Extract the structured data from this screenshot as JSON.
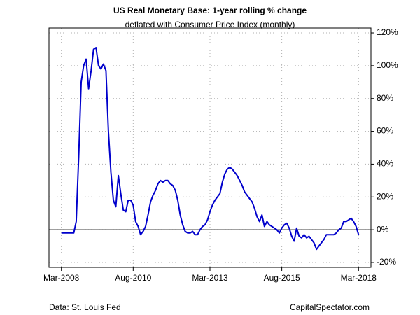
{
  "chart_data": {
    "type": "line",
    "title": "US Real Monetary Base: 1-year rolling % change",
    "subtitle": "deflated with Consumer Price Index (monthly)",
    "source": "Data: St. Louis Fed",
    "credit": "CapitalSpectator.com",
    "x": [
      "2008-03",
      "2008-04",
      "2008-05",
      "2008-06",
      "2008-07",
      "2008-08",
      "2008-09",
      "2008-10",
      "2008-11",
      "2008-12",
      "2009-01",
      "2009-02",
      "2009-03",
      "2009-04",
      "2009-05",
      "2009-06",
      "2009-07",
      "2009-08",
      "2009-09",
      "2009-10",
      "2009-11",
      "2009-12",
      "2010-01",
      "2010-02",
      "2010-03",
      "2010-04",
      "2010-05",
      "2010-06",
      "2010-07",
      "2010-08",
      "2010-09",
      "2010-10",
      "2010-11",
      "2010-12",
      "2011-01",
      "2011-02",
      "2011-03",
      "2011-04",
      "2011-05",
      "2011-06",
      "2011-07",
      "2011-08",
      "2011-09",
      "2011-10",
      "2011-11",
      "2011-12",
      "2012-01",
      "2012-02",
      "2012-03",
      "2012-04",
      "2012-05",
      "2012-06",
      "2012-07",
      "2012-08",
      "2012-09",
      "2012-10",
      "2012-11",
      "2012-12",
      "2013-01",
      "2013-02",
      "2013-03",
      "2013-04",
      "2013-05",
      "2013-06",
      "2013-07",
      "2013-08",
      "2013-09",
      "2013-10",
      "2013-11",
      "2013-12",
      "2014-01",
      "2014-02",
      "2014-03",
      "2014-04",
      "2014-05",
      "2014-06",
      "2014-07",
      "2014-08",
      "2014-09",
      "2014-10",
      "2014-11",
      "2014-12",
      "2015-01",
      "2015-02",
      "2015-03",
      "2015-04",
      "2015-05",
      "2015-06",
      "2015-07",
      "2015-08",
      "2015-09",
      "2015-10",
      "2015-11",
      "2015-12",
      "2016-01",
      "2016-02",
      "2016-03",
      "2016-04",
      "2016-05",
      "2016-06",
      "2016-07",
      "2016-08",
      "2016-09",
      "2016-10",
      "2016-11",
      "2016-12",
      "2017-01",
      "2017-02",
      "2017-03",
      "2017-04",
      "2017-05",
      "2017-06",
      "2017-07",
      "2017-08",
      "2017-09",
      "2017-10",
      "2017-11",
      "2017-12",
      "2018-01",
      "2018-02",
      "2018-03"
    ],
    "series": [
      {
        "color": "#0000cc",
        "values": [
          -2,
          -2,
          -2,
          -2,
          -2,
          -2,
          5,
          45,
          90,
          100,
          104,
          86,
          97,
          110,
          111,
          100,
          98,
          101,
          97,
          60,
          35,
          18,
          14,
          33,
          22,
          12,
          11,
          18,
          18,
          15,
          5,
          2,
          -3,
          -1,
          2,
          9,
          17,
          21,
          24,
          28,
          30,
          29,
          30,
          30,
          28,
          27,
          24,
          18,
          9,
          3,
          -1,
          -2,
          -2,
          -1,
          -3,
          -3,
          0,
          2,
          3,
          6,
          11,
          15,
          18,
          20,
          22,
          29,
          34,
          37,
          38,
          37,
          35,
          33,
          30,
          27,
          23,
          21,
          19,
          17,
          13,
          8,
          5,
          9,
          2,
          5,
          3,
          2,
          1,
          0,
          -2,
          1,
          3,
          4,
          1,
          -4,
          -7,
          1,
          -4,
          -5,
          -3,
          -5,
          -4,
          -6,
          -8,
          -12,
          -10,
          -8,
          -6,
          -3,
          -3,
          -3,
          -3,
          -2,
          0,
          1,
          5,
          5,
          6,
          7,
          5,
          2,
          -3
        ]
      }
    ],
    "xlim": [
      "2007-10",
      "2018-08"
    ],
    "xticks": [
      {
        "value": "2008-03",
        "label": "Mar-2008"
      },
      {
        "value": "2010-08",
        "label": "Aug-2010"
      },
      {
        "value": "2013-03",
        "label": "Mar-2013"
      },
      {
        "value": "2015-08",
        "label": "Aug-2015"
      },
      {
        "value": "2018-03",
        "label": "Mar-2018"
      }
    ],
    "ylim": [
      -23,
      123
    ],
    "yticks": [
      {
        "value": -20,
        "label": "-20%"
      },
      {
        "value": 0,
        "label": "0%"
      },
      {
        "value": 20,
        "label": "20%"
      },
      {
        "value": 40,
        "label": "40%"
      },
      {
        "value": 60,
        "label": "60%"
      },
      {
        "value": 80,
        "label": "80%"
      },
      {
        "value": 100,
        "label": "100%"
      },
      {
        "value": 120,
        "label": "120%"
      }
    ],
    "hline": 0,
    "grid": true
  }
}
